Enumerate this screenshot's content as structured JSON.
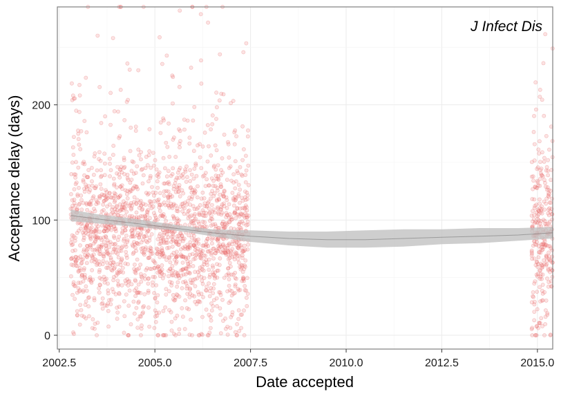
{
  "chart_data": {
    "type": "scatter",
    "title": "J Infect Dis",
    "xlabel": "Date accepted",
    "ylabel": "Acceptance delay (days)",
    "xlim": [
      2002.45,
      2015.4
    ],
    "ylim": [
      -12,
      285
    ],
    "x_ticks": [
      2002.5,
      2005.0,
      2007.5,
      2010.0,
      2012.5,
      2015.0
    ],
    "x_tick_labels": [
      "2002.5",
      "2005.0",
      "2007.5",
      "2010.0",
      "2012.5",
      "2015.0"
    ],
    "y_ticks": [
      0,
      100,
      200
    ],
    "y_tick_labels": [
      "0",
      "100",
      "200"
    ],
    "grid": true,
    "point_color": "#f08080",
    "smooth_color": "#bdbdbd",
    "trend_line_color": "#3b3b3b",
    "clusters": [
      {
        "x_range": [
          2002.8,
          2007.45
        ],
        "count": 1900,
        "y_median": 82,
        "y_spread": 38,
        "y_max": 285
      },
      {
        "x_range": [
          2014.85,
          2015.4
        ],
        "count": 280,
        "y_median": 80,
        "y_spread": 38,
        "y_max": 265
      }
    ],
    "smooth": {
      "x": [
        2002.8,
        2003.5,
        2004.5,
        2005.5,
        2006.5,
        2007.5,
        2008.5,
        2009.5,
        2010.5,
        2011.5,
        2012.5,
        2013.5,
        2014.5,
        2015.4
      ],
      "y": [
        104,
        101,
        97,
        93,
        89,
        86,
        84,
        83,
        83,
        84,
        85,
        86,
        87,
        89
      ],
      "lower": [
        99,
        97,
        94,
        91,
        86,
        81,
        78,
        76,
        76,
        77,
        79,
        80,
        82,
        84
      ],
      "upper": [
        109,
        105,
        101,
        96,
        92,
        91,
        90,
        90,
        91,
        92,
        92,
        93,
        93,
        94
      ]
    }
  }
}
